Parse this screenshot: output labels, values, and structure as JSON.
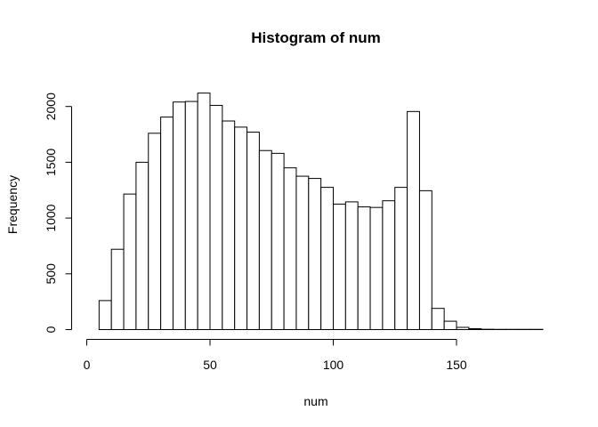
{
  "chart_data": {
    "type": "bar",
    "title": "Histogram of num",
    "xlabel": "num",
    "ylabel": "Frequency",
    "bin_width": 5,
    "bins_start": [
      5,
      10,
      15,
      20,
      25,
      30,
      35,
      40,
      45,
      50,
      55,
      60,
      65,
      70,
      75,
      80,
      85,
      90,
      95,
      100,
      105,
      110,
      115,
      120,
      125,
      130,
      135,
      140,
      145,
      150,
      155,
      160,
      165,
      170,
      175,
      180
    ],
    "values": [
      260,
      720,
      1215,
      1500,
      1760,
      1905,
      2040,
      2045,
      2120,
      2010,
      1870,
      1815,
      1770,
      1605,
      1580,
      1450,
      1375,
      1355,
      1275,
      1125,
      1145,
      1100,
      1095,
      1155,
      1275,
      1955,
      1245,
      190,
      75,
      20,
      8,
      3,
      2,
      2,
      2,
      2
    ],
    "xlim": [
      0,
      185
    ],
    "ylim": [
      0,
      2120
    ],
    "xticks": [
      0,
      50,
      100,
      150
    ],
    "yticks": [
      0,
      500,
      1000,
      1500,
      2000
    ],
    "xtick_labels": [
      "0",
      "50",
      "100",
      "150"
    ],
    "ytick_labels": [
      "0",
      "500",
      "1000",
      "1500",
      "2000"
    ]
  }
}
